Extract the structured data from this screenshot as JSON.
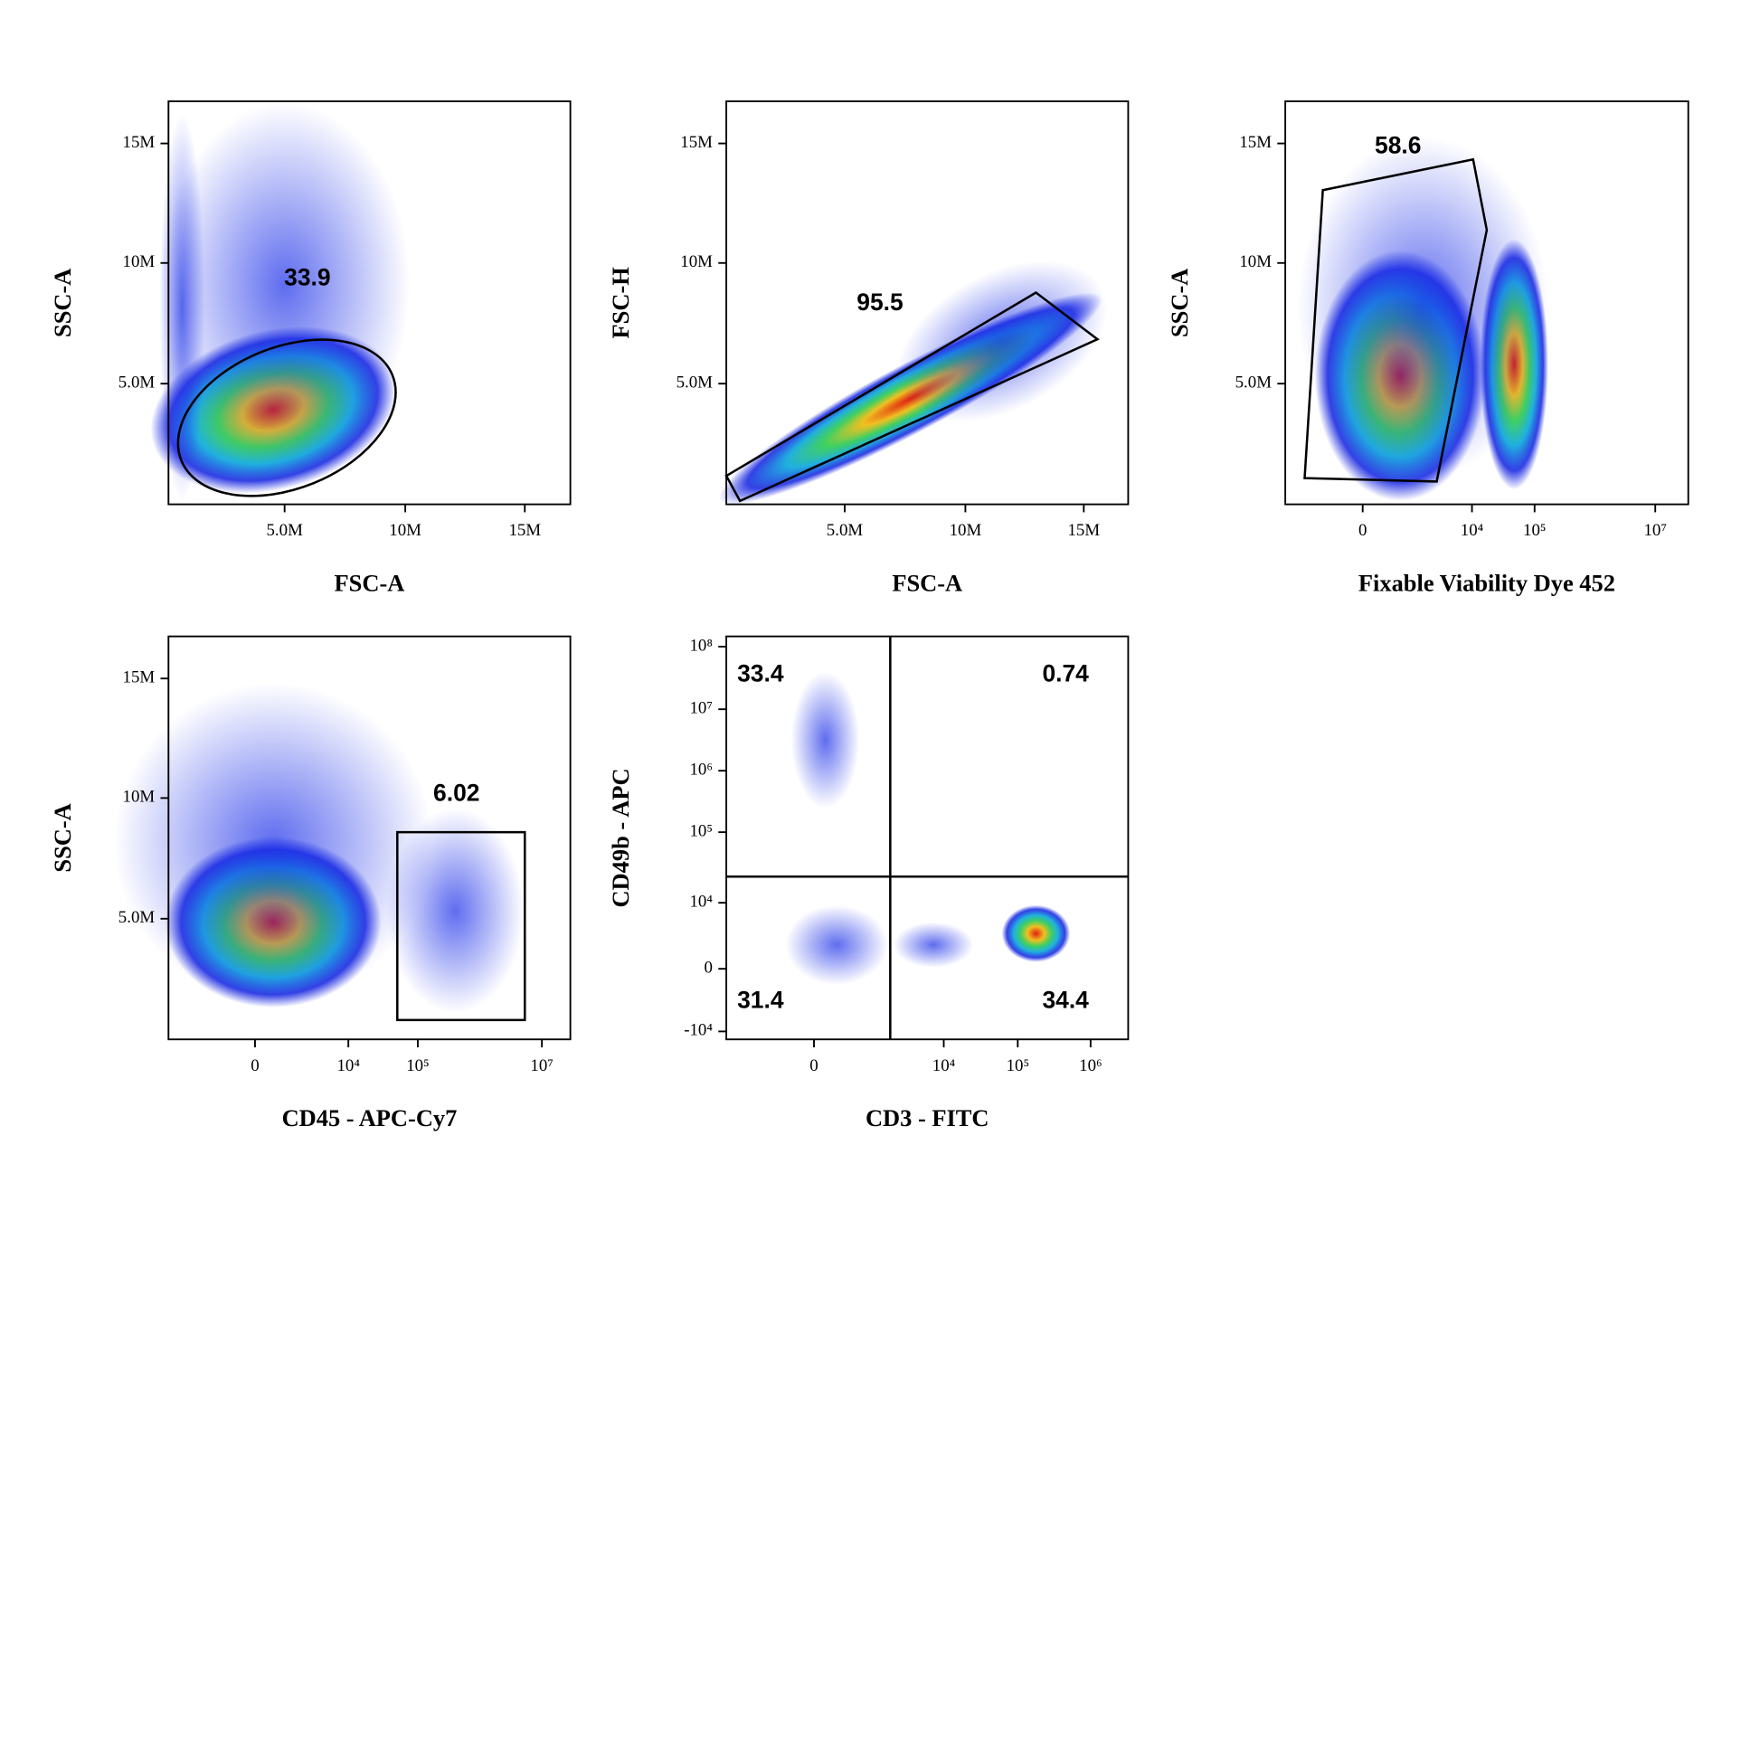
{
  "panels": [
    {
      "x_label": "FSC-A",
      "y_label": "SSC-A",
      "xticks": [
        "5.0M",
        "10M",
        "15M"
      ],
      "yticks": [
        "15M",
        "10M",
        "5.0M"
      ],
      "gates": [
        33.9
      ]
    },
    {
      "x_label": "FSC-A",
      "y_label": "FSC-H",
      "xticks": [
        "5.0M",
        "10M",
        "15M"
      ],
      "yticks": [
        "15M",
        "10M",
        "5.0M"
      ],
      "gates": [
        95.5
      ]
    },
    {
      "x_label": "Fixable Viability Dye 452",
      "y_label": "SSC-A",
      "xticks": [
        "0",
        "10⁴",
        "10⁵",
        "10⁷"
      ],
      "yticks": [
        "15M",
        "10M",
        "5.0M"
      ],
      "gates": [
        58.6
      ]
    },
    {
      "x_label": "CD45 - APC-Cy7",
      "y_label": "SSC-A",
      "xticks": [
        "0",
        "10⁴",
        "10⁵",
        "10⁷"
      ],
      "yticks": [
        "15M",
        "10M",
        "5.0M"
      ],
      "gates": [
        6.02
      ]
    },
    {
      "x_label": "CD3 - FITC",
      "y_label": "CD49b - APC",
      "xticks": [
        "0",
        "10⁴",
        "10⁵",
        "10⁶"
      ],
      "yticks": [
        "10⁸",
        "10⁷",
        "10⁶",
        "10⁵",
        "10⁴",
        "0",
        "-10⁴"
      ],
      "gates": [
        33.4,
        0.74,
        31.4,
        34.4
      ]
    }
  ]
}
